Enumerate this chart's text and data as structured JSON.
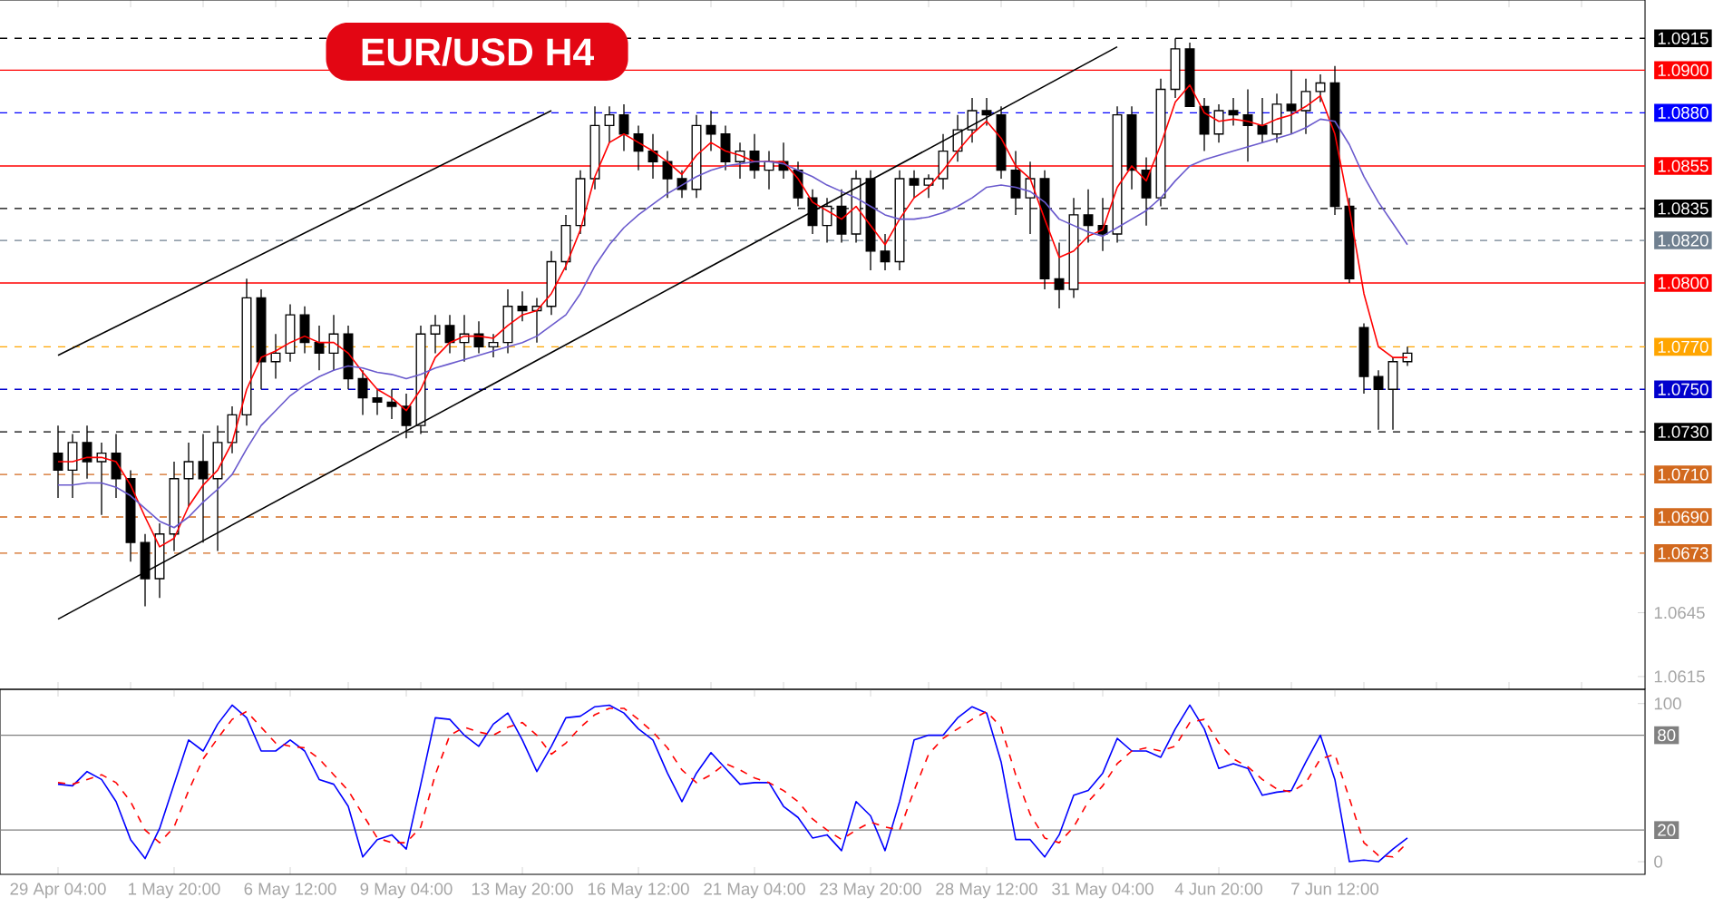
{
  "chart_data": [
    {
      "type": "candlestick",
      "title": "EUR/USD  H4",
      "categories": [
        null,
        null,
        null,
        null,
        null,
        null,
        null,
        null,
        null,
        null,
        null,
        null,
        null,
        null,
        null,
        null,
        null,
        null,
        null,
        null,
        null,
        null,
        null,
        null,
        null,
        null,
        null,
        null,
        null,
        null,
        null,
        null,
        null,
        null,
        null,
        null,
        null,
        null,
        null,
        null,
        null,
        null,
        null,
        null,
        null,
        null,
        null,
        null,
        null,
        null,
        null,
        null,
        null,
        null,
        null,
        null,
        null,
        null,
        null,
        null,
        null,
        null,
        null,
        null,
        null,
        null,
        null,
        null,
        null,
        null,
        null,
        null,
        null,
        null,
        null,
        null,
        null,
        null,
        null,
        null,
        null,
        null,
        null,
        null,
        null,
        null,
        null,
        null,
        null,
        null,
        null,
        null,
        null,
        null
      ],
      "ohlc": [
        [
          1.072,
          1.0733,
          1.0699,
          1.0712
        ],
        [
          1.0712,
          1.0729,
          1.0699,
          1.0725
        ],
        [
          1.0725,
          1.0733,
          1.0708,
          1.0716
        ],
        [
          1.0716,
          1.0725,
          1.0691,
          1.072
        ],
        [
          1.072,
          1.0729,
          1.0699,
          1.0708
        ],
        [
          1.0708,
          1.0712,
          1.0669,
          1.0678
        ],
        [
          1.0678,
          1.0682,
          1.0648,
          1.0661
        ],
        [
          1.0661,
          1.0687,
          1.0652,
          1.0682
        ],
        [
          1.0682,
          1.0716,
          1.0674,
          1.0708
        ],
        [
          1.0708,
          1.0725,
          1.0695,
          1.0716
        ],
        [
          1.0716,
          1.0729,
          1.0678,
          1.0708
        ],
        [
          1.0708,
          1.0733,
          1.0674,
          1.0725
        ],
        [
          1.0725,
          1.0742,
          1.072,
          1.0738
        ],
        [
          1.0738,
          1.0802,
          1.0733,
          1.0793
        ],
        [
          1.0793,
          1.0797,
          1.075,
          1.0763
        ],
        [
          1.0763,
          1.0776,
          1.0755,
          1.0767
        ],
        [
          1.0767,
          1.079,
          1.0763,
          1.0785
        ],
        [
          1.0785,
          1.0789,
          1.0767,
          1.0772
        ],
        [
          1.0772,
          1.078,
          1.0759,
          1.0767
        ],
        [
          1.0767,
          1.0785,
          1.0759,
          1.0776
        ],
        [
          1.0776,
          1.078,
          1.075,
          1.0755
        ],
        [
          1.0755,
          1.0759,
          1.0738,
          1.0746
        ],
        [
          1.0746,
          1.075,
          1.0738,
          1.0744
        ],
        [
          1.0744,
          1.075,
          1.0736,
          1.0742
        ],
        [
          1.0742,
          1.0748,
          1.0727,
          1.0733
        ],
        [
          1.0733,
          1.078,
          1.0729,
          1.0776
        ],
        [
          1.0776,
          1.0785,
          1.0767,
          1.078
        ],
        [
          1.078,
          1.0785,
          1.0767,
          1.0772
        ],
        [
          1.0772,
          1.0785,
          1.0763,
          1.0776
        ],
        [
          1.0776,
          1.0782,
          1.0767,
          1.077
        ],
        [
          1.077,
          1.0776,
          1.0765,
          1.0772
        ],
        [
          1.0772,
          1.0797,
          1.0767,
          1.0789
        ],
        [
          1.0789,
          1.0796,
          1.0782,
          1.0787
        ],
        [
          1.0787,
          1.0793,
          1.0772,
          1.0789
        ],
        [
          1.0789,
          1.0815,
          1.0785,
          1.081
        ],
        [
          1.081,
          1.0832,
          1.0806,
          1.0827
        ],
        [
          1.0827,
          1.0853,
          1.0823,
          1.0849
        ],
        [
          1.0849,
          1.0883,
          1.0844,
          1.0874
        ],
        [
          1.0874,
          1.0883,
          1.0866,
          1.0879
        ],
        [
          1.0879,
          1.0884,
          1.0862,
          1.087
        ],
        [
          1.087,
          1.0874,
          1.0853,
          1.0862
        ],
        [
          1.0862,
          1.087,
          1.0849,
          1.0857
        ],
        [
          1.0857,
          1.0862,
          1.084,
          1.0849
        ],
        [
          1.0849,
          1.0853,
          1.084,
          1.0844
        ],
        [
          1.0844,
          1.0879,
          1.084,
          1.0874
        ],
        [
          1.0874,
          1.0881,
          1.0862,
          1.087
        ],
        [
          1.087,
          1.0874,
          1.0853,
          1.0857
        ],
        [
          1.0857,
          1.0866,
          1.0849,
          1.0862
        ],
        [
          1.0862,
          1.087,
          1.0849,
          1.0853
        ],
        [
          1.0853,
          1.0862,
          1.0844,
          1.0857
        ],
        [
          1.0857,
          1.0866,
          1.0849,
          1.0853
        ],
        [
          1.0853,
          1.0857,
          1.0836,
          1.084
        ],
        [
          1.084,
          1.0844,
          1.0823,
          1.0827
        ],
        [
          1.0827,
          1.084,
          1.0819,
          1.0836
        ],
        [
          1.0836,
          1.0844,
          1.0819,
          1.0823
        ],
        [
          1.0823,
          1.0853,
          1.0819,
          1.0849
        ],
        [
          1.0849,
          1.0853,
          1.0806,
          1.0815
        ],
        [
          1.0815,
          1.0823,
          1.0806,
          1.081
        ],
        [
          1.081,
          1.0853,
          1.0806,
          1.0849
        ],
        [
          1.0849,
          1.0853,
          1.084,
          1.0846
        ],
        [
          1.0846,
          1.0851,
          1.084,
          1.0849
        ],
        [
          1.0849,
          1.087,
          1.0844,
          1.0862
        ],
        [
          1.0862,
          1.0879,
          1.0857,
          1.0872
        ],
        [
          1.0872,
          1.0887,
          1.0866,
          1.0881
        ],
        [
          1.0881,
          1.0887,
          1.0874,
          1.0879
        ],
        [
          1.0879,
          1.0883,
          1.0849,
          1.0853
        ],
        [
          1.0853,
          1.0862,
          1.0832,
          1.084
        ],
        [
          1.084,
          1.0857,
          1.0823,
          1.0849
        ],
        [
          1.0849,
          1.0853,
          1.0797,
          1.0802
        ],
        [
          1.0802,
          1.0819,
          1.0788,
          1.0797
        ],
        [
          1.0797,
          1.084,
          1.0793,
          1.0832
        ],
        [
          1.0832,
          1.0844,
          1.0819,
          1.0827
        ],
        [
          1.0827,
          1.084,
          1.0815,
          1.0823
        ],
        [
          1.0823,
          1.0883,
          1.0819,
          1.0879
        ],
        [
          1.0879,
          1.0883,
          1.0844,
          1.0853
        ],
        [
          1.0853,
          1.0859,
          1.0827,
          1.084
        ],
        [
          1.084,
          1.0896,
          1.0836,
          1.0891
        ],
        [
          1.0891,
          1.0915,
          1.0887,
          1.091
        ],
        [
          1.091,
          1.0913,
          1.0883,
          1.0883
        ],
        [
          1.0883,
          1.0887,
          1.0862,
          1.087
        ],
        [
          1.087,
          1.0884,
          1.0866,
          1.0881
        ],
        [
          1.0881,
          1.0887,
          1.0874,
          1.0879
        ],
        [
          1.0879,
          1.0891,
          1.0857,
          1.0874
        ],
        [
          1.0874,
          1.0887,
          1.0866,
          1.087
        ],
        [
          1.087,
          1.0889,
          1.0866,
          1.0884
        ],
        [
          1.0884,
          1.09,
          1.087,
          1.0881
        ],
        [
          1.0881,
          1.0896,
          1.087,
          1.089
        ],
        [
          1.089,
          1.0898,
          1.0885,
          1.0894
        ],
        [
          1.0894,
          1.0902,
          1.0832,
          1.0836
        ],
        [
          1.0836,
          1.084,
          1.08,
          1.0802
        ],
        [
          1.0779,
          1.0781,
          1.0748,
          1.0756
        ],
        [
          1.0756,
          1.0759,
          1.0731,
          1.075
        ],
        [
          1.075,
          1.0765,
          1.0731,
          1.0763
        ],
        [
          1.0763,
          1.077,
          1.0761,
          1.0767
        ]
      ],
      "series": [
        {
          "type": "line",
          "color": "#ff0000",
          "values": [
            1.0716,
            1.0716,
            1.0718,
            1.0718,
            1.0716,
            1.0705,
            1.069,
            1.0676,
            1.068,
            1.0695,
            1.0705,
            1.0712,
            1.0725,
            1.075,
            1.0765,
            1.0768,
            1.0772,
            1.0775,
            1.0772,
            1.0772,
            1.0767,
            1.0758,
            1.075,
            1.0746,
            1.074,
            1.075,
            1.0765,
            1.0772,
            1.0775,
            1.0775,
            1.0774,
            1.078,
            1.0785,
            1.0787,
            1.0795,
            1.0808,
            1.0825,
            1.085,
            1.0866,
            1.087,
            1.0866,
            1.0862,
            1.0857,
            1.0851,
            1.086,
            1.0866,
            1.0862,
            1.086,
            1.0857,
            1.0857,
            1.0857,
            1.0849,
            1.0838,
            1.0834,
            1.083,
            1.0836,
            1.0827,
            1.0818,
            1.083,
            1.084,
            1.0845,
            1.0853,
            1.0862,
            1.087,
            1.0876,
            1.0868,
            1.0855,
            1.0849,
            1.083,
            1.0812,
            1.0815,
            1.0822,
            1.0825,
            1.0845,
            1.0855,
            1.0848,
            1.0865,
            1.0885,
            1.0893,
            1.088,
            1.0876,
            1.0877,
            1.0876,
            1.0874,
            1.0877,
            1.0879,
            1.0883,
            1.0888,
            1.087,
            1.0835,
            1.0795,
            1.077,
            1.0765,
            1.0765
          ]
        },
        {
          "type": "line",
          "color": "#6a5acd",
          "values": [
            1.0705,
            1.0705,
            1.0706,
            1.0706,
            1.0704,
            1.07,
            1.0694,
            1.0688,
            1.0685,
            1.069,
            1.0697,
            1.0703,
            1.071,
            1.0722,
            1.0733,
            1.074,
            1.0747,
            1.0752,
            1.0756,
            1.0759,
            1.0761,
            1.076,
            1.0758,
            1.0757,
            1.0755,
            1.0757,
            1.076,
            1.0762,
            1.0764,
            1.0766,
            1.0768,
            1.077,
            1.0772,
            1.0775,
            1.078,
            1.0785,
            1.0795,
            1.0808,
            1.0818,
            1.0826,
            1.0832,
            1.0837,
            1.0842,
            1.0846,
            1.085,
            1.0853,
            1.0855,
            1.0856,
            1.0857,
            1.0857,
            1.0856,
            1.0853,
            1.085,
            1.0846,
            1.0843,
            1.084,
            1.0836,
            1.0832,
            1.083,
            1.083,
            1.0831,
            1.0833,
            1.0836,
            1.084,
            1.0845,
            1.0846,
            1.0845,
            1.0843,
            1.0838,
            1.083,
            1.0827,
            1.0824,
            1.0822,
            1.0826,
            1.083,
            1.0834,
            1.084,
            1.0848,
            1.0855,
            1.0858,
            1.086,
            1.0862,
            1.0864,
            1.0866,
            1.0868,
            1.087,
            1.0873,
            1.0877,
            1.0876,
            1.0865,
            1.085,
            1.0838,
            1.0828,
            1.0818
          ]
        },
        {
          "type": "line",
          "color": "#000000",
          "values": [
            1.0766,
            null,
            null,
            null,
            null,
            null,
            null,
            null,
            null,
            null,
            null,
            null,
            null,
            null,
            null,
            null,
            null,
            null,
            null,
            null,
            null,
            null,
            null,
            null,
            null,
            null,
            null,
            null,
            null,
            null,
            null,
            null,
            null,
            null,
            1.0881,
            null,
            null,
            null,
            null,
            null,
            null,
            null,
            null,
            null,
            null,
            null,
            null,
            null,
            null,
            null,
            null,
            null,
            null,
            null,
            null,
            null,
            null,
            null,
            null,
            null,
            null,
            null,
            null,
            null,
            null,
            null,
            null,
            null,
            null,
            null,
            null,
            null,
            null,
            null,
            null,
            null,
            null,
            null,
            null,
            null,
            null,
            null,
            null,
            null,
            null,
            null,
            null,
            null,
            null,
            null,
            null,
            null,
            null,
            null
          ]
        },
        {
          "type": "line",
          "color": "#000000",
          "values": [
            1.0642,
            null,
            null,
            null,
            null,
            null,
            null,
            null,
            null,
            null,
            null,
            null,
            null,
            null,
            null,
            null,
            null,
            null,
            null,
            null,
            null,
            null,
            null,
            null,
            null,
            null,
            null,
            null,
            null,
            null,
            null,
            null,
            null,
            null,
            null,
            null,
            null,
            null,
            null,
            null,
            null,
            null,
            null,
            null,
            null,
            null,
            null,
            null,
            null,
            null,
            null,
            null,
            null,
            null,
            null,
            null,
            null,
            null,
            null,
            null,
            null,
            null,
            null,
            null,
            null,
            null,
            null,
            null,
            null,
            null,
            null,
            null,
            null,
            1.0911,
            null,
            null,
            null,
            null,
            null,
            null,
            null,
            null,
            null,
            null,
            null,
            null,
            null,
            null,
            null,
            null,
            null,
            null,
            null,
            null
          ]
        }
      ],
      "ylim": [
        1.0609,
        1.0933
      ],
      "yticks": [
        1.0645,
        1.0615
      ],
      "ref_lines": [
        {
          "axis": "y",
          "value": 1.0915,
          "label": "1.0915",
          "color": "#000000",
          "line_style": "dashed"
        },
        {
          "axis": "y",
          "value": 1.09,
          "label": "1.0900",
          "color": "#ff0000",
          "line_style": "solid"
        },
        {
          "axis": "y",
          "value": 1.088,
          "label": "1.0880",
          "color": "#0000ff",
          "line_style": "dashed"
        },
        {
          "axis": "y",
          "value": 1.0855,
          "label": "1.0855",
          "color": "#ff0000",
          "line_style": "solid"
        },
        {
          "axis": "y",
          "value": 1.0835,
          "label": "1.0835",
          "color": "#000000",
          "line_style": "dashed"
        },
        {
          "axis": "y",
          "value": 1.082,
          "label": "1.0820",
          "color": "#708090",
          "line_style": "dashed"
        },
        {
          "axis": "y",
          "value": 1.08,
          "label": "1.0800",
          "color": "#ff0000",
          "line_style": "solid"
        },
        {
          "axis": "y",
          "value": 1.077,
          "label": "1.0770",
          "color": "#ffa500",
          "line_style": "dashed"
        },
        {
          "axis": "y",
          "value": 1.075,
          "label": "1.0750",
          "color": "#0000cd",
          "line_style": "dashed"
        },
        {
          "axis": "y",
          "value": 1.073,
          "label": "1.0730",
          "color": "#000000",
          "line_style": "dashed"
        },
        {
          "axis": "y",
          "value": 1.071,
          "label": "1.0710",
          "color": "#d2691e",
          "line_style": "dashed"
        },
        {
          "axis": "y",
          "value": 1.069,
          "label": "1.0690",
          "color": "#d2691e",
          "line_style": "dashed"
        },
        {
          "axis": "y",
          "value": 1.0673,
          "label": "1.0673",
          "color": "#d2691e",
          "line_style": "dashed"
        }
      ]
    },
    {
      "type": "line",
      "categories": [
        "29 Apr 04:00",
        null,
        null,
        null,
        null,
        null,
        null,
        null,
        "1 May 20:00",
        null,
        null,
        null,
        null,
        null,
        null,
        null,
        "6 May 12:00",
        null,
        null,
        null,
        null,
        null,
        null,
        null,
        "9 May 04:00",
        null,
        null,
        null,
        null,
        null,
        null,
        null,
        "13 May 20:00",
        null,
        null,
        null,
        null,
        null,
        null,
        null,
        "16 May 12:00",
        null,
        null,
        null,
        null,
        null,
        null,
        null,
        "21 May 04:00",
        null,
        null,
        null,
        null,
        null,
        null,
        null,
        "23 May 20:00",
        null,
        null,
        null,
        null,
        null,
        null,
        null,
        "28 May 12:00",
        null,
        null,
        null,
        null,
        null,
        null,
        null,
        "31 May 04:00",
        null,
        null,
        null,
        null,
        null,
        null,
        null,
        "4 Jun 20:00",
        null,
        null,
        null,
        null,
        null,
        null,
        null,
        "7 Jun 12:00",
        null,
        null,
        null,
        null,
        null
      ],
      "series": [
        {
          "color": "#0000ff",
          "line_style": "solid",
          "values": [
            49,
            48,
            57,
            52,
            38,
            14,
            2,
            21,
            49,
            77,
            70,
            87,
            99,
            91,
            70,
            70,
            77,
            70,
            52,
            49,
            35,
            3,
            14,
            17,
            8,
            49,
            91,
            90,
            80,
            73,
            87,
            94,
            77,
            57,
            73,
            91,
            92,
            98,
            99,
            94,
            84,
            77,
            56,
            38,
            56,
            69,
            59,
            49,
            50,
            50,
            35,
            28,
            15,
            17,
            7,
            38,
            29,
            7,
            38,
            77,
            80,
            80,
            91,
            98,
            94,
            63,
            14,
            14,
            3,
            17,
            42,
            45,
            56,
            78,
            70,
            70,
            66,
            84,
            99,
            84,
            59,
            62,
            59,
            42,
            44,
            45,
            63,
            80,
            52,
            0,
            1,
            0,
            8,
            15
          ]
        },
        {
          "color": "#ff0000",
          "line_style": "dashed",
          "values": [
            50,
            49,
            52,
            55,
            50,
            38,
            20,
            12,
            22,
            45,
            65,
            78,
            90,
            95,
            85,
            75,
            73,
            72,
            65,
            55,
            45,
            30,
            15,
            12,
            12,
            22,
            55,
            80,
            85,
            82,
            80,
            85,
            88,
            80,
            68,
            75,
            85,
            93,
            97,
            97,
            90,
            82,
            72,
            58,
            50,
            55,
            62,
            58,
            53,
            50,
            45,
            38,
            27,
            20,
            14,
            20,
            25,
            22,
            20,
            45,
            68,
            78,
            84,
            90,
            95,
            85,
            55,
            30,
            15,
            12,
            22,
            38,
            48,
            62,
            70,
            72,
            70,
            73,
            88,
            90,
            75,
            65,
            60,
            52,
            46,
            44,
            50,
            65,
            68,
            40,
            12,
            4,
            3,
            12
          ]
        }
      ],
      "ylim": [
        -8,
        109
      ],
      "yticks": [
        0,
        100
      ],
      "ref_lines": [
        {
          "axis": "y",
          "value": 80,
          "label": "80",
          "color": "#808080",
          "line_style": "solid"
        },
        {
          "axis": "y",
          "value": 20,
          "label": "20",
          "color": "#808080",
          "line_style": "solid"
        }
      ]
    }
  ]
}
